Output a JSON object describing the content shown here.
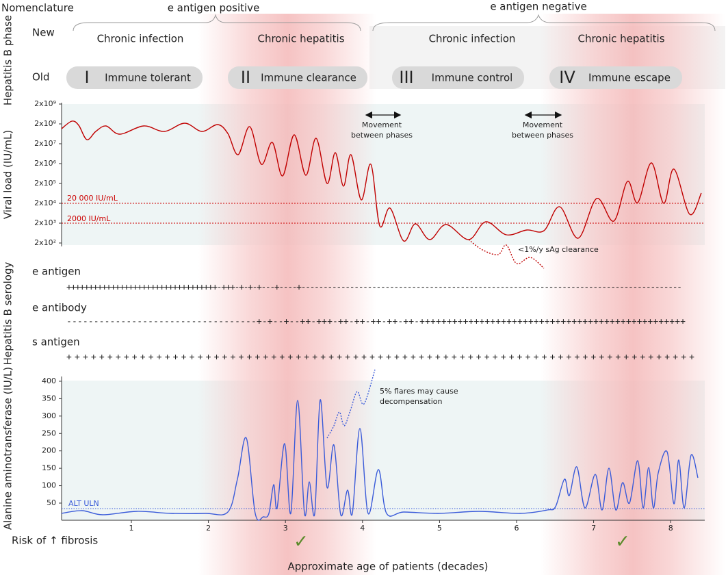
{
  "nomenclature": "Nomenclature",
  "side_labels": {
    "phase": "Hepatitis B phase",
    "viral_load": "Viral load (IU/mL)",
    "serology": "Hepatitis B serology",
    "alt": "Alanine aminotransferase (IU/L)"
  },
  "groups": [
    "e antigen positive",
    "e antigen negative"
  ],
  "new_label": "New",
  "old_label": "Old",
  "phases": [
    {
      "new": "Chronic infection",
      "numeral": "I",
      "old": "Immune tolerant"
    },
    {
      "new": "Chronic hepatitis",
      "numeral": "II",
      "old": "Immune clearance"
    },
    {
      "new": "Chronic infection",
      "numeral": "III",
      "old": "Immune control"
    },
    {
      "new": "Chronic hepatitis",
      "numeral": "IV",
      "old": "Immune escape"
    }
  ],
  "viral_load": {
    "yticks": [
      "2x10⁹",
      "2x10⁸",
      "2x10⁷",
      "2x10⁶",
      "2x10⁵",
      "2x10⁴",
      "2x10³",
      "2x10²"
    ],
    "thresholds": [
      "20 000 IU/mL",
      "2000 IU/mL"
    ],
    "movement": [
      "Movement",
      "between phases"
    ],
    "clearance": "<1%/y sAg clearance"
  },
  "serology": [
    {
      "name": "e antigen",
      "marks": "++++++++++++++++++++++++++++++++++-+++-+-+-+---+----+--------------------------------------------------------------------------------------"
    },
    {
      "name": "e antibody",
      "marks": "-----------------------------------+-+--+--++-+++-++-++-++-++-++-+++++++++++++++++++++++++++++++++++++++++++++++++"
    },
    {
      "name": "s antigen",
      "marks": "+++++++++++++++++++++++++++++++++++++++++++++++++++++++++++++++++++++++++++++"
    }
  ],
  "alt": {
    "yticks": [
      50,
      100,
      150,
      200,
      250,
      300,
      350,
      400
    ],
    "uln": "ALT ULN",
    "flares": [
      "5% flares may cause",
      "decompensation"
    ]
  },
  "xticks": [
    1,
    2,
    3,
    4,
    5,
    6,
    7,
    8
  ],
  "risk": "Risk of ↑ fibrosis",
  "check": "✓",
  "x_axis_label": "Approximate age of patients (decades)"
}
